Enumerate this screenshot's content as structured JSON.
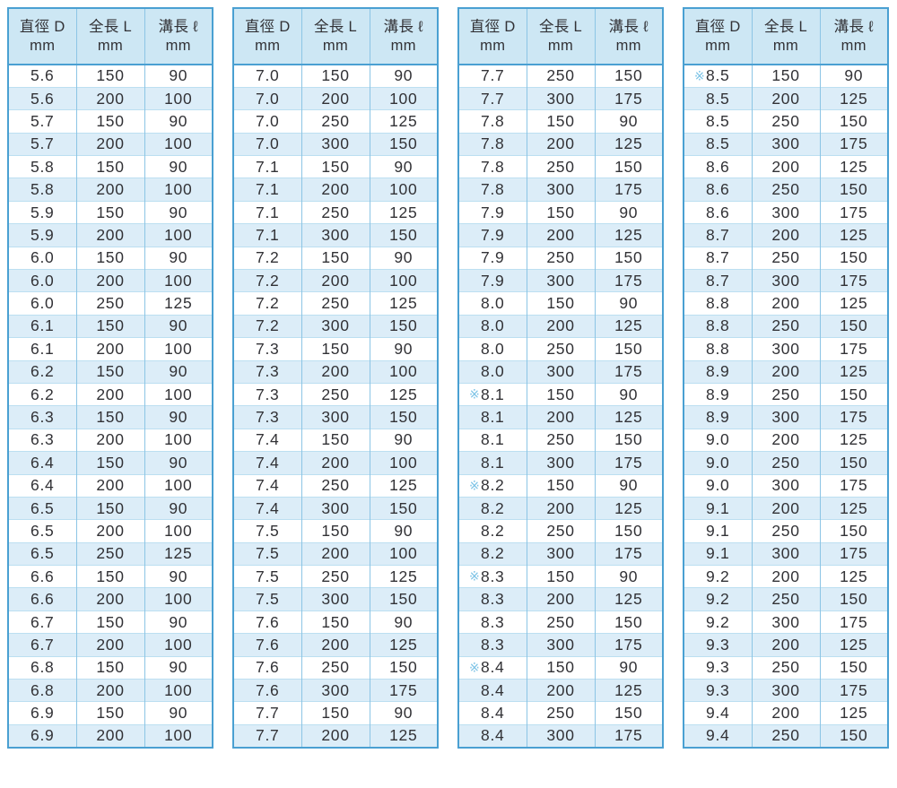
{
  "colors": {
    "border": "#4aa0d2",
    "header-bg": "#cde7f4",
    "row-alt": "#dcedf8",
    "line-v": "#8cc5e5",
    "line-h": "#bcdff1",
    "text": "#323236",
    "mark": "#7cc3e6"
  },
  "note_mark": "※",
  "columns": [
    {
      "line1": "直徑 D",
      "line2": "mm"
    },
    {
      "line1": "全長 L",
      "line2": "mm"
    },
    {
      "line1": "溝長 ℓ",
      "line2": "mm"
    }
  ],
  "tables": [
    {
      "rows": [
        [
          "5.6",
          "150",
          "90"
        ],
        [
          "5.6",
          "200",
          "100"
        ],
        [
          "5.7",
          "150",
          "90"
        ],
        [
          "5.7",
          "200",
          "100"
        ],
        [
          "5.8",
          "150",
          "90"
        ],
        [
          "5.8",
          "200",
          "100"
        ],
        [
          "5.9",
          "150",
          "90"
        ],
        [
          "5.9",
          "200",
          "100"
        ],
        [
          "6.0",
          "150",
          "90"
        ],
        [
          "6.0",
          "200",
          "100"
        ],
        [
          "6.0",
          "250",
          "125"
        ],
        [
          "6.1",
          "150",
          "90"
        ],
        [
          "6.1",
          "200",
          "100"
        ],
        [
          "6.2",
          "150",
          "90"
        ],
        [
          "6.2",
          "200",
          "100"
        ],
        [
          "6.3",
          "150",
          "90"
        ],
        [
          "6.3",
          "200",
          "100"
        ],
        [
          "6.4",
          "150",
          "90"
        ],
        [
          "6.4",
          "200",
          "100"
        ],
        [
          "6.5",
          "150",
          "90"
        ],
        [
          "6.5",
          "200",
          "100"
        ],
        [
          "6.5",
          "250",
          "125"
        ],
        [
          "6.6",
          "150",
          "90"
        ],
        [
          "6.6",
          "200",
          "100"
        ],
        [
          "6.7",
          "150",
          "90"
        ],
        [
          "6.7",
          "200",
          "100"
        ],
        [
          "6.8",
          "150",
          "90"
        ],
        [
          "6.8",
          "200",
          "100"
        ],
        [
          "6.9",
          "150",
          "90"
        ],
        [
          "6.9",
          "200",
          "100"
        ]
      ]
    },
    {
      "rows": [
        [
          "7.0",
          "150",
          "90"
        ],
        [
          "7.0",
          "200",
          "100"
        ],
        [
          "7.0",
          "250",
          "125"
        ],
        [
          "7.0",
          "300",
          "150"
        ],
        [
          "7.1",
          "150",
          "90"
        ],
        [
          "7.1",
          "200",
          "100"
        ],
        [
          "7.1",
          "250",
          "125"
        ],
        [
          "7.1",
          "300",
          "150"
        ],
        [
          "7.2",
          "150",
          "90"
        ],
        [
          "7.2",
          "200",
          "100"
        ],
        [
          "7.2",
          "250",
          "125"
        ],
        [
          "7.2",
          "300",
          "150"
        ],
        [
          "7.3",
          "150",
          "90"
        ],
        [
          "7.3",
          "200",
          "100"
        ],
        [
          "7.3",
          "250",
          "125"
        ],
        [
          "7.3",
          "300",
          "150"
        ],
        [
          "7.4",
          "150",
          "90"
        ],
        [
          "7.4",
          "200",
          "100"
        ],
        [
          "7.4",
          "250",
          "125"
        ],
        [
          "7.4",
          "300",
          "150"
        ],
        [
          "7.5",
          "150",
          "90"
        ],
        [
          "7.5",
          "200",
          "100"
        ],
        [
          "7.5",
          "250",
          "125"
        ],
        [
          "7.5",
          "300",
          "150"
        ],
        [
          "7.6",
          "150",
          "90"
        ],
        [
          "7.6",
          "200",
          "125"
        ],
        [
          "7.6",
          "250",
          "150"
        ],
        [
          "7.6",
          "300",
          "175"
        ],
        [
          "7.7",
          "150",
          "90"
        ],
        [
          "7.7",
          "200",
          "125"
        ]
      ]
    },
    {
      "rows": [
        [
          "7.7",
          "250",
          "150"
        ],
        [
          "7.7",
          "300",
          "175"
        ],
        [
          "7.8",
          "150",
          "90"
        ],
        [
          "7.8",
          "200",
          "125"
        ],
        [
          "7.8",
          "250",
          "150"
        ],
        [
          "7.8",
          "300",
          "175"
        ],
        [
          "7.9",
          "150",
          "90"
        ],
        [
          "7.9",
          "200",
          "125"
        ],
        [
          "7.9",
          "250",
          "150"
        ],
        [
          "7.9",
          "300",
          "175"
        ],
        [
          "8.0",
          "150",
          "90"
        ],
        [
          "8.0",
          "200",
          "125"
        ],
        [
          "8.0",
          "250",
          "150"
        ],
        [
          "8.0",
          "300",
          "175"
        ],
        [
          "8.1",
          "150",
          "90",
          true
        ],
        [
          "8.1",
          "200",
          "125"
        ],
        [
          "8.1",
          "250",
          "150"
        ],
        [
          "8.1",
          "300",
          "175"
        ],
        [
          "8.2",
          "150",
          "90",
          true
        ],
        [
          "8.2",
          "200",
          "125"
        ],
        [
          "8.2",
          "250",
          "150"
        ],
        [
          "8.2",
          "300",
          "175"
        ],
        [
          "8.3",
          "150",
          "90",
          true
        ],
        [
          "8.3",
          "200",
          "125"
        ],
        [
          "8.3",
          "250",
          "150"
        ],
        [
          "8.3",
          "300",
          "175"
        ],
        [
          "8.4",
          "150",
          "90",
          true
        ],
        [
          "8.4",
          "200",
          "125"
        ],
        [
          "8.4",
          "250",
          "150"
        ],
        [
          "8.4",
          "300",
          "175"
        ]
      ]
    },
    {
      "rows": [
        [
          "8.5",
          "150",
          "90",
          true
        ],
        [
          "8.5",
          "200",
          "125"
        ],
        [
          "8.5",
          "250",
          "150"
        ],
        [
          "8.5",
          "300",
          "175"
        ],
        [
          "8.6",
          "200",
          "125"
        ],
        [
          "8.6",
          "250",
          "150"
        ],
        [
          "8.6",
          "300",
          "175"
        ],
        [
          "8.7",
          "200",
          "125"
        ],
        [
          "8.7",
          "250",
          "150"
        ],
        [
          "8.7",
          "300",
          "175"
        ],
        [
          "8.8",
          "200",
          "125"
        ],
        [
          "8.8",
          "250",
          "150"
        ],
        [
          "8.8",
          "300",
          "175"
        ],
        [
          "8.9",
          "200",
          "125"
        ],
        [
          "8.9",
          "250",
          "150"
        ],
        [
          "8.9",
          "300",
          "175"
        ],
        [
          "9.0",
          "200",
          "125"
        ],
        [
          "9.0",
          "250",
          "150"
        ],
        [
          "9.0",
          "300",
          "175"
        ],
        [
          "9.1",
          "200",
          "125"
        ],
        [
          "9.1",
          "250",
          "150"
        ],
        [
          "9.1",
          "300",
          "175"
        ],
        [
          "9.2",
          "200",
          "125"
        ],
        [
          "9.2",
          "250",
          "150"
        ],
        [
          "9.2",
          "300",
          "175"
        ],
        [
          "9.3",
          "200",
          "125"
        ],
        [
          "9.3",
          "250",
          "150"
        ],
        [
          "9.3",
          "300",
          "175"
        ],
        [
          "9.4",
          "200",
          "125"
        ],
        [
          "9.4",
          "250",
          "150"
        ]
      ]
    }
  ]
}
